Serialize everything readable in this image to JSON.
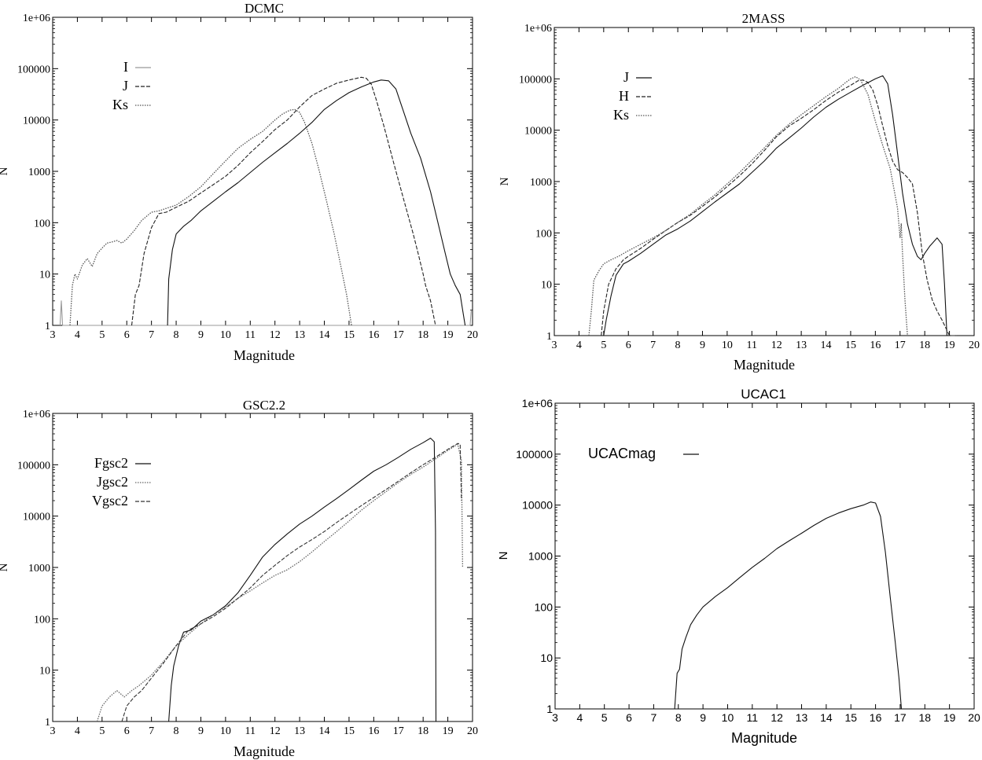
{
  "chart_data": [
    {
      "type": "line",
      "title": "DCMC",
      "xlabel": "Magnitude",
      "ylabel": "N",
      "xlim": [
        3,
        20
      ],
      "ylim": [
        1,
        1000000
      ],
      "yscale": "log",
      "grid": false,
      "legend_position": "top-left",
      "font": "serif",
      "xticks": [
        "3",
        "4",
        "5",
        "6",
        "7",
        "8",
        "9",
        "10",
        "11",
        "12",
        "13",
        "14",
        "15",
        "16",
        "17",
        "18",
        "19",
        "20"
      ],
      "yticks": [
        "1",
        "10",
        "100",
        "1000",
        "10000",
        "100000",
        "1e+06"
      ],
      "series": [
        {
          "name": "I",
          "style": "solid",
          "color": "#999999",
          "x": [
            3.3,
            3.35,
            3.4,
            19.9,
            19.95
          ],
          "y": [
            1,
            3,
            1,
            1,
            2
          ]
        },
        {
          "name": "J",
          "style": "dashed",
          "color": "#222222",
          "x": [
            6.2,
            6.35,
            6.5,
            6.7,
            7.0,
            7.3,
            7.6,
            8.0,
            8.5,
            9.0,
            9.5,
            10.0,
            10.5,
            11.0,
            11.5,
            12.0,
            12.5,
            13.0,
            13.5,
            14.0,
            14.5,
            15.0,
            15.5,
            15.7,
            15.9,
            16.1,
            16.4,
            16.8,
            17.2,
            17.6,
            17.8,
            18.0,
            18.1,
            18.3,
            18.5
          ],
          "y": [
            1,
            4,
            6,
            25,
            80,
            150,
            160,
            200,
            260,
            380,
            550,
            800,
            1300,
            2300,
            3800,
            6500,
            10000,
            18000,
            30000,
            40000,
            52000,
            60000,
            68000,
            65000,
            50000,
            25000,
            8000,
            1500,
            300,
            60,
            25,
            10,
            6,
            3,
            1
          ]
        },
        {
          "name": "Ks",
          "style": "dotted",
          "color": "#555555",
          "x": [
            3.7,
            3.8,
            3.9,
            4.0,
            4.2,
            4.4,
            4.6,
            4.8,
            5.0,
            5.2,
            5.4,
            5.6,
            5.8,
            6.0,
            6.3,
            6.6,
            7.0,
            7.3,
            7.6,
            8.0,
            8.5,
            9.0,
            9.5,
            10.0,
            10.5,
            11.0,
            11.5,
            12.0,
            12.3,
            12.6,
            12.8,
            13.0,
            13.2,
            13.5,
            13.8,
            14.1,
            14.4,
            14.7,
            14.9,
            15.1
          ],
          "y": [
            1,
            6,
            10,
            8,
            15,
            20,
            14,
            25,
            32,
            40,
            42,
            45,
            40,
            48,
            70,
            110,
            160,
            170,
            190,
            220,
            320,
            500,
            900,
            1600,
            2800,
            4200,
            6000,
            10000,
            13000,
            15500,
            16000,
            14000,
            9000,
            3500,
            1000,
            250,
            60,
            12,
            4,
            1
          ]
        },
        {
          "name": "",
          "style": "solid",
          "color": "#111111",
          "x": [
            7.65,
            7.7,
            7.85,
            8.0,
            8.3,
            8.6,
            9.0,
            9.5,
            10.0,
            10.5,
            11.0,
            11.5,
            12.0,
            12.5,
            13.0,
            13.5,
            14.0,
            14.5,
            15.0,
            15.5,
            16.0,
            16.3,
            16.6,
            16.9,
            17.2,
            17.5,
            17.9,
            18.3,
            18.6,
            18.9,
            19.1,
            19.3,
            19.5,
            19.6,
            19.7
          ],
          "y": [
            1,
            8,
            30,
            60,
            85,
            110,
            170,
            260,
            400,
            600,
            950,
            1500,
            2300,
            3500,
            5500,
            9000,
            16000,
            24000,
            34000,
            44000,
            55000,
            60000,
            58000,
            40000,
            15000,
            5500,
            1800,
            400,
            100,
            25,
            10,
            6,
            4,
            2,
            1
          ]
        }
      ]
    },
    {
      "type": "line",
      "title": "2MASS",
      "xlabel": "Magnitude",
      "ylabel": "N",
      "xlim": [
        3,
        20
      ],
      "ylim": [
        1,
        1000000
      ],
      "yscale": "log",
      "grid": false,
      "legend_position": "top-left",
      "font": "serif",
      "xticks": [
        "3",
        "4",
        "5",
        "6",
        "7",
        "8",
        "9",
        "10",
        "11",
        "12",
        "13",
        "14",
        "15",
        "16",
        "17",
        "18",
        "19",
        "20"
      ],
      "yticks": [
        "1",
        "10",
        "100",
        "1000",
        "10000",
        "100000",
        "1e+06"
      ],
      "series": [
        {
          "name": "J",
          "style": "solid",
          "color": "#111111",
          "x": [
            5.0,
            5.1,
            5.3,
            5.5,
            5.8,
            6.0,
            6.5,
            7.0,
            7.5,
            8.0,
            8.5,
            9.0,
            9.5,
            10.0,
            10.5,
            11.0,
            11.5,
            12.0,
            12.5,
            13.0,
            13.5,
            14.0,
            14.5,
            15.0,
            15.5,
            16.0,
            16.3,
            16.5,
            16.7,
            16.9,
            17.1,
            17.3,
            17.5,
            17.7,
            17.85,
            18.0,
            18.2,
            18.5,
            18.7,
            18.8,
            18.9
          ],
          "y": [
            1,
            2,
            6,
            15,
            25,
            28,
            40,
            60,
            90,
            120,
            170,
            260,
            400,
            600,
            900,
            1500,
            2500,
            4500,
            7000,
            11000,
            18000,
            28000,
            40000,
            55000,
            75000,
            100000,
            115000,
            80000,
            20000,
            3500,
            600,
            150,
            60,
            35,
            30,
            40,
            55,
            80,
            60,
            10,
            1
          ]
        },
        {
          "name": "H",
          "style": "dashed",
          "color": "#222222",
          "x": [
            4.9,
            5.0,
            5.2,
            5.5,
            5.8,
            6.0,
            6.5,
            7.0,
            7.5,
            8.0,
            8.5,
            9.0,
            9.5,
            10.0,
            10.5,
            11.0,
            11.5,
            12.0,
            12.5,
            13.0,
            13.5,
            14.0,
            14.5,
            15.0,
            15.3,
            15.5,
            15.7,
            15.9,
            16.1,
            16.3,
            16.5,
            16.7,
            16.9,
            17.1,
            17.3,
            17.5,
            17.7,
            17.9,
            18.1,
            18.3,
            18.5,
            18.7,
            19.0,
            19.3
          ],
          "y": [
            1,
            3,
            10,
            20,
            30,
            35,
            50,
            75,
            110,
            160,
            220,
            330,
            500,
            800,
            1300,
            2200,
            4000,
            7500,
            12000,
            17000,
            25000,
            38000,
            55000,
            75000,
            92000,
            95000,
            85000,
            60000,
            30000,
            12000,
            5000,
            2500,
            1700,
            1500,
            1200,
            900,
            250,
            40,
            12,
            5,
            3,
            2,
            1,
            1
          ]
        },
        {
          "name": "Ks",
          "style": "dotted",
          "color": "#555555",
          "x": [
            4.4,
            4.5,
            4.6,
            4.8,
            5.0,
            5.3,
            5.6,
            6.0,
            6.5,
            7.0,
            7.5,
            8.0,
            8.5,
            9.0,
            9.5,
            10.0,
            10.5,
            11.0,
            11.5,
            12.0,
            12.5,
            13.0,
            13.5,
            14.0,
            14.5,
            14.8,
            15.0,
            15.2,
            15.4,
            15.7,
            16.0,
            16.3,
            16.6,
            16.9,
            17.0,
            17.05,
            17.1,
            17.2,
            17.3
          ],
          "y": [
            1,
            3,
            12,
            18,
            25,
            30,
            35,
            45,
            60,
            80,
            110,
            160,
            230,
            360,
            550,
            900,
            1500,
            2600,
            4500,
            8000,
            13000,
            20000,
            30000,
            45000,
            65000,
            85000,
            100000,
            110000,
            95000,
            50000,
            15000,
            5000,
            1800,
            300,
            80,
            150,
            40,
            5,
            1
          ]
        }
      ]
    },
    {
      "type": "line",
      "title": "GSC2.2",
      "xlabel": "Magnitude",
      "ylabel": "N",
      "xlim": [
        3,
        20
      ],
      "ylim": [
        1,
        1000000
      ],
      "yscale": "log",
      "grid": false,
      "legend_position": "top-left",
      "font": "serif",
      "xticks": [
        "3",
        "4",
        "5",
        "6",
        "7",
        "8",
        "9",
        "10",
        "11",
        "12",
        "13",
        "14",
        "15",
        "16",
        "17",
        "18",
        "19",
        "20"
      ],
      "yticks": [
        "1",
        "10",
        "100",
        "1000",
        "10000",
        "100000",
        "1e+06"
      ],
      "series": [
        {
          "name": "Fgsc2",
          "style": "solid",
          "color": "#111111",
          "x": [
            7.7,
            7.8,
            7.9,
            8.1,
            8.3,
            8.6,
            9.0,
            9.5,
            10.0,
            10.5,
            11.0,
            11.5,
            12.0,
            12.5,
            13.0,
            13.5,
            14.0,
            14.5,
            15.0,
            15.5,
            16.0,
            16.5,
            17.0,
            17.5,
            18.0,
            18.3,
            18.45,
            18.5,
            18.52
          ],
          "y": [
            1,
            5,
            12,
            30,
            55,
            60,
            90,
            120,
            180,
            320,
            700,
            1600,
            2800,
            4500,
            7000,
            10000,
            15000,
            22000,
            33000,
            50000,
            75000,
            100000,
            140000,
            200000,
            270000,
            330000,
            280000,
            5000,
            1
          ]
        },
        {
          "name": "Jgsc2",
          "style": "dotted",
          "color": "#666666",
          "x": [
            4.8,
            5.0,
            5.3,
            5.6,
            5.9,
            6.2,
            6.5,
            7.0,
            7.5,
            8.0,
            8.5,
            9.0,
            9.5,
            10.0,
            10.5,
            11.0,
            11.5,
            12.0,
            12.5,
            13.0,
            13.5,
            14.0,
            14.5,
            15.0,
            15.5,
            16.0,
            16.5,
            17.0,
            17.5,
            18.0,
            18.5,
            19.0,
            19.4,
            19.55,
            19.6
          ],
          "y": [
            1,
            2,
            3,
            4,
            3,
            4,
            5,
            8,
            15,
            30,
            50,
            80,
            120,
            170,
            250,
            350,
            500,
            700,
            900,
            1300,
            2000,
            3200,
            5000,
            8000,
            13000,
            20000,
            30000,
            45000,
            65000,
            90000,
            130000,
            190000,
            250000,
            120000,
            1000
          ]
        },
        {
          "name": "Vgsc2",
          "style": "dashed",
          "color": "#333333",
          "x": [
            5.8,
            6.0,
            6.3,
            6.6,
            7.0,
            7.5,
            8.0,
            8.5,
            9.0,
            9.5,
            10.0,
            10.5,
            11.0,
            11.5,
            12.0,
            12.5,
            13.0,
            13.5,
            14.0,
            14.5,
            15.0,
            15.5,
            16.0,
            16.5,
            17.0,
            17.5,
            18.0,
            18.5,
            19.0,
            19.4,
            19.5,
            19.55
          ],
          "y": [
            1,
            2,
            3,
            4,
            7,
            14,
            30,
            60,
            80,
            110,
            160,
            250,
            400,
            700,
            1100,
            1700,
            2500,
            3500,
            5000,
            7500,
            11000,
            16000,
            23000,
            33000,
            48000,
            70000,
            100000,
            140000,
            200000,
            260000,
            250000,
            20000
          ]
        }
      ]
    },
    {
      "type": "line",
      "title": "UCAC1",
      "xlabel": "Magnitude",
      "ylabel": "N",
      "xlim": [
        3,
        20
      ],
      "ylim": [
        1,
        1000000
      ],
      "yscale": "log",
      "grid": false,
      "legend_position": "top-left",
      "font": "sans",
      "xticks": [
        "3",
        "4",
        "5",
        "6",
        "7",
        "8",
        "9",
        "10",
        "11",
        "12",
        "13",
        "14",
        "15",
        "16",
        "17",
        "18",
        "19",
        "20"
      ],
      "yticks": [
        "1",
        "10",
        "100",
        "1000",
        "10000",
        "100000",
        "1e+06"
      ],
      "series": [
        {
          "name": "UCACmag",
          "style": "solid",
          "color": "#111111",
          "x": [
            7.85,
            7.95,
            8.05,
            8.15,
            8.3,
            8.5,
            8.75,
            9.0,
            9.5,
            10.0,
            10.5,
            11.0,
            11.5,
            12.0,
            12.5,
            13.0,
            13.5,
            14.0,
            14.5,
            15.0,
            15.5,
            15.8,
            16.0,
            16.2,
            16.4,
            16.6,
            16.8,
            16.95,
            17.05
          ],
          "y": [
            1,
            5,
            6,
            15,
            25,
            45,
            70,
            100,
            160,
            240,
            380,
            600,
            900,
            1400,
            2000,
            2800,
            4000,
            5500,
            7000,
            8500,
            10000,
            11500,
            11000,
            6000,
            1200,
            150,
            20,
            4,
            1
          ]
        }
      ]
    }
  ]
}
